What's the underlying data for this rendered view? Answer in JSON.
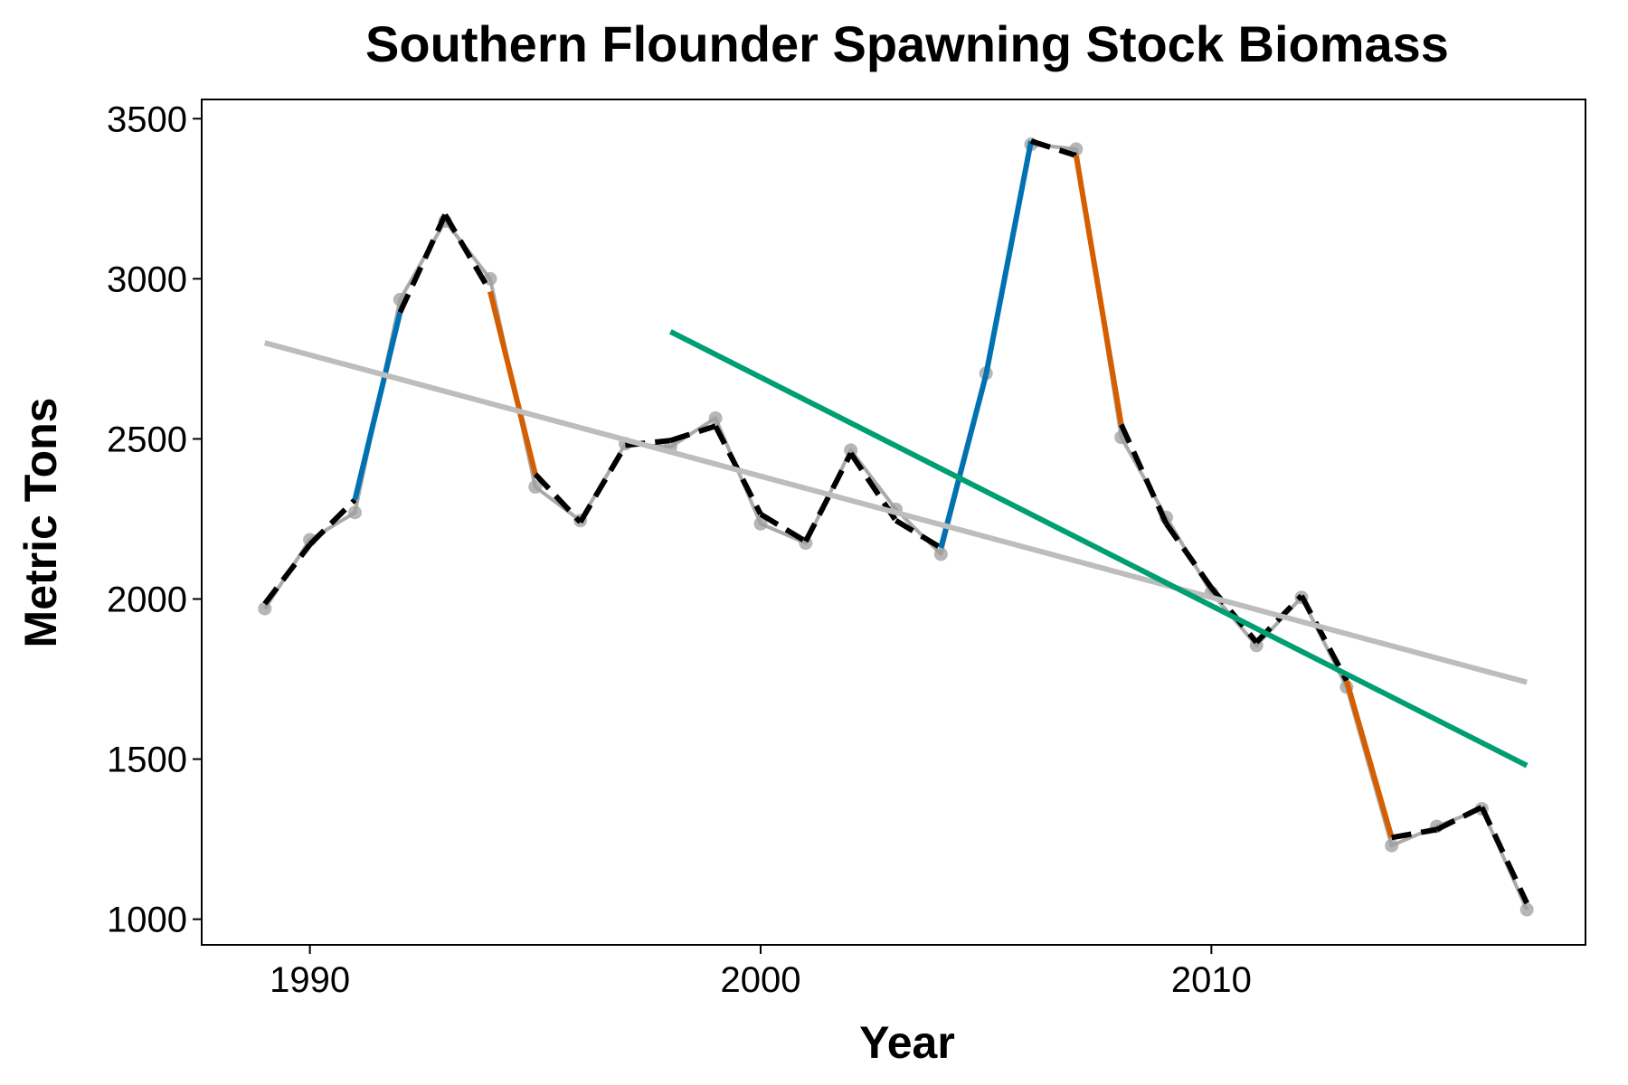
{
  "chart_data": {
    "type": "line",
    "title": "Southern Flounder Spawning Stock Biomass",
    "xlabel": "Year",
    "ylabel": "Metric Tons",
    "xlim": [
      1987.6,
      2018.3
    ],
    "ylim": [
      920,
      3560
    ],
    "x_ticks": [
      1990,
      2000,
      2010
    ],
    "y_ticks": [
      1000,
      1500,
      2000,
      2500,
      3000,
      3500
    ],
    "grid": false,
    "series": [
      {
        "x": [
          1989,
          1990,
          1991,
          1992,
          1993,
          1994,
          1995,
          1996,
          1997,
          1998,
          1999,
          2000,
          2001,
          2002,
          2003,
          2004,
          2005,
          2006,
          2007,
          2008,
          2009,
          2010,
          2011,
          2012,
          2013,
          2014,
          2015,
          2016,
          2017
        ],
        "values": [
          1970,
          2185,
          2270,
          2935,
          3180,
          3000,
          2350,
          2245,
          2485,
          2475,
          2565,
          2235,
          2175,
          2465,
          2280,
          2140,
          2705,
          3420,
          3405,
          2505,
          2255,
          2020,
          1855,
          2005,
          1725,
          1230,
          1290,
          1345,
          1030
        ],
        "color": "#aaaaaa",
        "style": "solid-with-points"
      },
      {
        "x": [
          1989,
          1990,
          1991,
          1992,
          1993,
          1994,
          1995,
          1996,
          1997,
          1998,
          1999,
          2000,
          2001,
          2002,
          2003,
          2004,
          2005,
          2006,
          2007,
          2008,
          2009,
          2010,
          2011,
          2012,
          2013,
          2014,
          2015,
          2016,
          2017
        ],
        "values": [
          1985,
          2170,
          2310,
          2895,
          3200,
          2960,
          2390,
          2240,
          2480,
          2495,
          2540,
          2265,
          2180,
          2455,
          2245,
          2160,
          2700,
          3430,
          3385,
          2545,
          2235,
          2035,
          1865,
          2010,
          1745,
          1255,
          1280,
          1350,
          1050
        ],
        "color": "#000000",
        "style": "dashed",
        "segments": [
          {
            "from": 1991,
            "to": 1992,
            "color": "#0072B2"
          },
          {
            "from": 1994,
            "to": 1995,
            "color": "#D55E00"
          },
          {
            "from": 2004,
            "to": 2006,
            "color": "#0072B2"
          },
          {
            "from": 2007,
            "to": 2008,
            "color": "#D55E00"
          },
          {
            "from": 2013,
            "to": 2014,
            "color": "#D55E00"
          }
        ]
      },
      {
        "x": [
          1989,
          2017
        ],
        "values": [
          2800,
          1740
        ],
        "color": "#bdbdbd",
        "style": "trend"
      },
      {
        "x": [
          1998,
          2017
        ],
        "values": [
          2835,
          1480
        ],
        "color": "#009E73",
        "style": "trend"
      }
    ]
  }
}
